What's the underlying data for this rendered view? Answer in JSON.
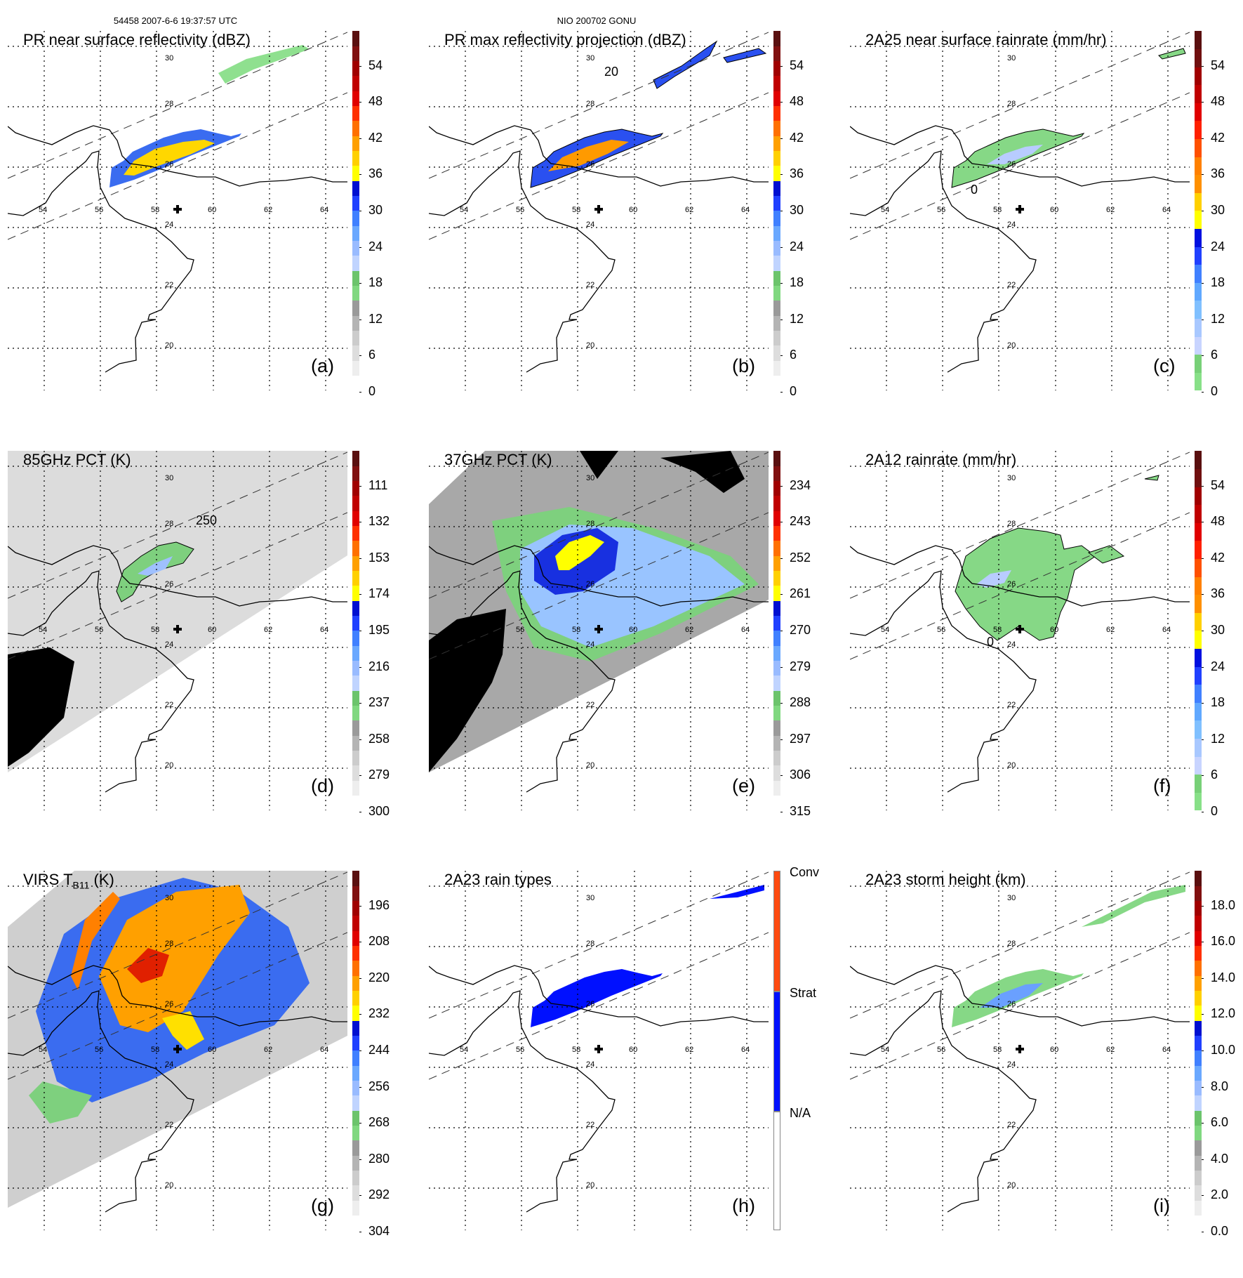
{
  "header": {
    "orbit_info": "54458 2007-6-6 19:37:57 UTC",
    "storm_info": "NIO 200702 GONU"
  },
  "map_labels": {
    "longitudes": [
      "54",
      "56",
      "58",
      "60",
      "62",
      "64"
    ],
    "latitudes": [
      "30",
      "28",
      "26",
      "24",
      "22",
      "20"
    ]
  },
  "colors": {
    "coast": "#000000",
    "refl_scale": [
      "#ffffff",
      "#eeeeee",
      "#dddddd",
      "#cccccc",
      "#b4b4b4",
      "#9a9a9a",
      "#80d880",
      "#6cc46c",
      "#c0d4ff",
      "#99bbff",
      "#6aa8ff",
      "#4080ff",
      "#2040ff",
      "#0010d0",
      "#ffff00",
      "#ffd000",
      "#ffa000",
      "#ff7000",
      "#ff3000",
      "#e00000",
      "#c00000",
      "#a00000",
      "#801010",
      "#5a1010"
    ],
    "rain_scale": [
      "#88e088",
      "#78d078",
      "#c8d4ff",
      "#a8c8ff",
      "#80c0ff",
      "#60a8ff",
      "#4080ff",
      "#2040ff",
      "#0010e0",
      "#ffff00",
      "#ffd000",
      "#ff9000",
      "#ff8000",
      "#ff5000",
      "#ff2000",
      "#e00000",
      "#c00000",
      "#a00000",
      "#701010",
      "#5a1010"
    ],
    "type_scale": [
      "#ffffff",
      "#0010ff",
      "#ff4a10"
    ]
  },
  "panels": [
    {
      "id": "a",
      "letter": "(a)",
      "title": "PR near surface reflectivity (dBZ)",
      "scale": "refl_scale",
      "labels": [
        "0",
        "6",
        "12",
        "18",
        "24",
        "30",
        "36",
        "42",
        "48",
        "54"
      ]
    },
    {
      "id": "b",
      "letter": "(b)",
      "title": "PR max reflectivity projection (dBZ)",
      "scale": "refl_scale",
      "labels": [
        "0",
        "6",
        "12",
        "18",
        "24",
        "30",
        "36",
        "42",
        "48",
        "54"
      ],
      "contour_label": "20"
    },
    {
      "id": "c",
      "letter": "(c)",
      "title": "2A25 near surface rainrate (mm/hr)",
      "scale": "rain_scale",
      "labels": [
        "0",
        "6",
        "12",
        "18",
        "24",
        "30",
        "36",
        "42",
        "48",
        "54"
      ],
      "contour_label": "0"
    },
    {
      "id": "d",
      "letter": "(d)",
      "title": "85GHz PCT (K)",
      "scale": "refl_scale",
      "labels": [
        "300",
        "279",
        "258",
        "237",
        "216",
        "195",
        "174",
        "153",
        "132",
        "111"
      ],
      "contour_label": "250"
    },
    {
      "id": "e",
      "letter": "(e)",
      "title": "37GHz PCT (K)",
      "scale": "refl_scale",
      "labels": [
        "315",
        "306",
        "297",
        "288",
        "279",
        "270",
        "261",
        "252",
        "243",
        "234"
      ]
    },
    {
      "id": "f",
      "letter": "(f)",
      "title": "2A12 rainrate (mm/hr)",
      "scale": "rain_scale",
      "labels": [
        "0",
        "6",
        "12",
        "18",
        "24",
        "30",
        "36",
        "42",
        "48",
        "54"
      ],
      "contour_label": "0"
    },
    {
      "id": "g",
      "letter": "(g)",
      "title": "VIRS T",
      "title_sub": "B11",
      "title_suffix": " (K)",
      "scale": "refl_scale",
      "labels": [
        "304",
        "292",
        "280",
        "268",
        "256",
        "244",
        "232",
        "220",
        "208",
        "196"
      ]
    },
    {
      "id": "h",
      "letter": "(h)",
      "title": "2A23 rain types",
      "scale": "type_scale",
      "labels": [
        "N/A",
        "Strat",
        "Conv"
      ]
    },
    {
      "id": "i",
      "letter": "(i)",
      "title": "2A23 storm height (km)",
      "scale": "refl_scale",
      "labels": [
        "0.0",
        "2.0",
        "4.0",
        "6.0",
        "8.0",
        "10.0",
        "12.0",
        "14.0",
        "16.0",
        "18.0"
      ]
    }
  ]
}
